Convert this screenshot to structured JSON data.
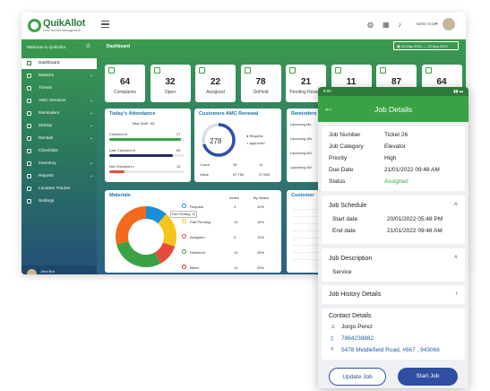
{
  "app": {
    "brand": "QuikAllot",
    "tagline": "Field Service Management",
    "user_name": "Admin Icon",
    "date_range": "24 May 2021 — 23 Aug 2022"
  },
  "sidebar": {
    "welcome": "Welcome to QuikAllot",
    "items": [
      {
        "label": "Dashboard",
        "icon": "dashboard-icon",
        "chev": false
      },
      {
        "label": "Masters",
        "icon": "masters-icon",
        "chev": true
      },
      {
        "label": "Tickets",
        "icon": "ticket-icon",
        "chev": false
      },
      {
        "label": "AMC Services",
        "icon": "amc-icon",
        "chev": true
      },
      {
        "label": "Reminders",
        "icon": "bell-icon",
        "chev": true
      },
      {
        "label": "20Step",
        "icon": "step-icon",
        "chev": true
      },
      {
        "label": "Rentals",
        "icon": "rental-icon",
        "chev": true
      },
      {
        "label": "Checklists",
        "icon": "checklist-icon",
        "chev": false
      },
      {
        "label": "Inventory",
        "icon": "inventory-icon",
        "chev": true
      },
      {
        "label": "Reports",
        "icon": "reports-icon",
        "chev": true
      },
      {
        "label": "Location Tracker",
        "icon": "location-icon",
        "chev": false
      },
      {
        "label": "Settings",
        "icon": "gear-icon",
        "chev": false
      }
    ],
    "user": {
      "name": "John Bot",
      "role": "Administrator | Organization"
    }
  },
  "main": {
    "title": "Dashboard",
    "stats": [
      {
        "value": "64",
        "label": "Complaints"
      },
      {
        "value": "32",
        "label": "Open"
      },
      {
        "value": "22",
        "label": "Assigned"
      },
      {
        "value": "78",
        "label": "OnHold"
      },
      {
        "value": "21",
        "label": "Pending Review"
      },
      {
        "value": "11",
        "label": "Completed"
      },
      {
        "value": "87",
        "label": "Cancelled"
      },
      {
        "value": "64",
        "label": "Rescheduled"
      }
    ],
    "attendance": {
      "title": "Today's Attendance",
      "subtitle": "Total Staff : 58",
      "rows": [
        {
          "label": "Checked In",
          "value": "27",
          "pct": 0.95,
          "color": "#3aa245"
        },
        {
          "label": "Late Checked In",
          "value": "65",
          "pct": 0.85,
          "color": "#1f2f5a"
        },
        {
          "label": "Not Checked In",
          "value": "12",
          "pct": 0.2,
          "color": "#e84b3c"
        }
      ]
    },
    "amc": {
      "title": "Customers AMC Renewal",
      "gauge_value": "278",
      "legend": [
        "Request",
        "Approved"
      ],
      "rows": [
        {
          "label": "Count",
          "a": "28",
          "b": "12"
        },
        {
          "label": "Value",
          "a": "67,750",
          "b": "27,590"
        }
      ]
    },
    "reminders": {
      "title": "Reminders",
      "rows": [
        "Upcoming Ma",
        "Upcoming Wa",
        "Upcoming AM",
        "Upcoming AM"
      ]
    },
    "materials": {
      "title": "Materials",
      "col_active": "Active",
      "col_status": "By Status",
      "rows": [
        {
          "label": "Request",
          "active": "4",
          "pct": "10%",
          "color": "#1a8fd8"
        },
        {
          "label": "Part Pending",
          "active": "13",
          "pct": "16%",
          "color": "#f5c518"
        },
        {
          "label": "Assigned",
          "active": "9",
          "pct": "10%",
          "color": "#e84b3c"
        },
        {
          "label": "Delivered",
          "active": "13",
          "pct": "25%",
          "color": "#3aa245"
        },
        {
          "label": "Billed",
          "active": "12",
          "pct": "25%",
          "color": "#d22"
        }
      ],
      "tooltip": "Part Pending: 13"
    },
    "customer": {
      "title": "Customer"
    },
    "chart_data": {
      "type": "pie",
      "categories": [
        "Request",
        "Part Pending",
        "Assigned",
        "Delivered",
        "Billed"
      ],
      "values": [
        10,
        16,
        10,
        25,
        25
      ],
      "colors": [
        "#1a8fd8",
        "#f5c518",
        "#e84b3c",
        "#3aa245",
        "#f26a1b"
      ]
    }
  },
  "phone": {
    "status_time": "9:00",
    "header": "Job Details",
    "fields": [
      {
        "label": "Job Number",
        "value": "Ticket 26"
      },
      {
        "label": "Job Category",
        "value": "Elevator"
      },
      {
        "label": "Priority",
        "value": "High"
      },
      {
        "label": "Due Date",
        "value": "21/01/2022 09:48 AM"
      },
      {
        "label": "Status",
        "value": "Assigned"
      }
    ],
    "schedule": {
      "title": "Job Schedule",
      "start_label": "Start date",
      "start_value": "20/01/2022 05:48 PM",
      "end_label": "End date",
      "end_value": "21/01/2022 09:48 AM"
    },
    "description": {
      "title": "Job Description",
      "value": "Service"
    },
    "history": {
      "title": "Job History Details"
    },
    "contact": {
      "title": "Contact Details",
      "name": "Jorgo Perez",
      "phone": "7864238882",
      "address": "5478 Middlefield Road, #667 , 943066"
    },
    "buttons": {
      "update": "Update Job",
      "start": "Start Job"
    },
    "colors": {
      "green": "#3aa245",
      "blue": "#2f4fa3"
    }
  }
}
